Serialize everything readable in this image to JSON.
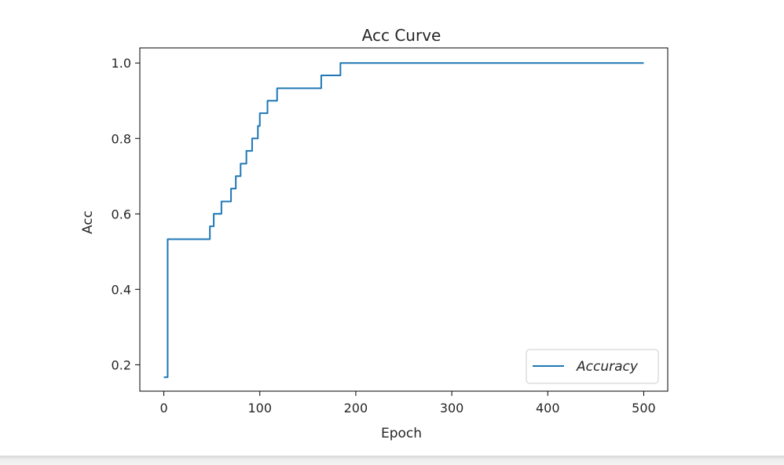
{
  "chart_data": {
    "type": "line",
    "title": "Acc Curve",
    "xlabel": "Epoch",
    "ylabel": "Acc",
    "xlim": [
      -25,
      525
    ],
    "ylim": [
      0.13,
      1.04
    ],
    "x_ticks": [
      0,
      100,
      200,
      300,
      400,
      500
    ],
    "y_ticks": [
      0.2,
      0.4,
      0.6,
      0.8,
      1.0
    ],
    "x_tick_labels": [
      "0",
      "100",
      "200",
      "300",
      "400",
      "500"
    ],
    "y_tick_labels": [
      "0.2",
      "0.4",
      "0.6",
      "0.8",
      "1.0"
    ],
    "grid": false,
    "legend_position": "lower-right",
    "series": [
      {
        "name": "Accuracy",
        "color": "#1f77b4",
        "step": true,
        "points": [
          [
            0,
            0.167
          ],
          [
            4,
            0.533
          ],
          [
            48,
            0.567
          ],
          [
            52,
            0.6
          ],
          [
            60,
            0.633
          ],
          [
            70,
            0.667
          ],
          [
            75,
            0.7
          ],
          [
            80,
            0.733
          ],
          [
            86,
            0.767
          ],
          [
            92,
            0.8
          ],
          [
            98,
            0.833
          ],
          [
            100,
            0.867
          ],
          [
            108,
            0.9
          ],
          [
            118,
            0.933
          ],
          [
            164,
            0.967
          ],
          [
            184,
            1.0
          ],
          [
            500,
            1.0
          ]
        ]
      }
    ]
  }
}
